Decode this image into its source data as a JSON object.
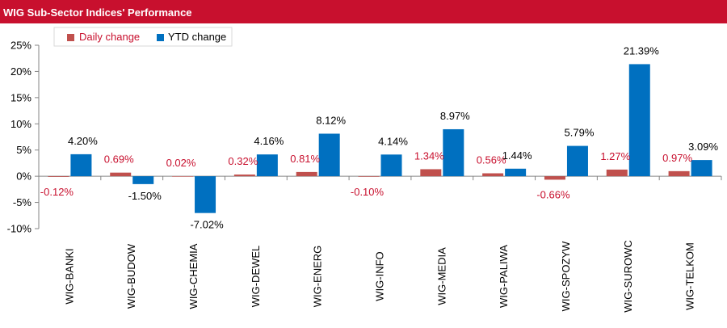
{
  "title": "WIG Sub-Sector Indices' Performance",
  "colors": {
    "header": "#c8102e",
    "daily": "#c0504d",
    "ytd": "#0070c0",
    "daily_label": "#c8102e",
    "ytd_label": "#000000",
    "axis": "#868686",
    "grid": "#868686"
  },
  "chart_data": {
    "type": "bar",
    "title": "WIG Sub-Sector Indices' Performance",
    "xlabel": "",
    "ylabel": "",
    "ylim": [
      -10,
      25
    ],
    "yticks": [
      25,
      20,
      15,
      10,
      5,
      0,
      -5,
      -10
    ],
    "ytick_labels": [
      "25%",
      "20%",
      "15%",
      "10%",
      "5%",
      "0%",
      "-5%",
      "-10%"
    ],
    "grid": false,
    "legend_position": "top-left",
    "categories": [
      "WIG-BANKI",
      "WIG-BUDOW",
      "WIG-CHEMIA",
      "WIG-DEWEL",
      "WIG-ENERG",
      "WIG-INFO",
      "WIG-MEDIA",
      "WIG-PALIWA",
      "WIG-SPOZYW",
      "WIG-SUROWC",
      "WIG-TELKOM"
    ],
    "series": [
      {
        "name": "Daily change",
        "values": [
          -0.12,
          0.69,
          0.02,
          0.32,
          0.81,
          -0.1,
          1.34,
          0.56,
          -0.66,
          1.27,
          0.97
        ],
        "labels": [
          "-0.12%",
          "0.69%",
          "0.02%",
          "0.32%",
          "0.81%",
          "-0.10%",
          "1.34%",
          "0.56%",
          "-0.66%",
          "1.27%",
          "0.97%"
        ]
      },
      {
        "name": "YTD change",
        "values": [
          4.2,
          -1.5,
          -7.02,
          4.16,
          8.12,
          4.14,
          8.97,
          1.44,
          5.79,
          21.39,
          3.09
        ],
        "labels": [
          "4.20%",
          "-1.50%",
          "-7.02%",
          "4.16%",
          "8.12%",
          "4.14%",
          "8.97%",
          "1.44%",
          "5.79%",
          "21.39%",
          "3.09%"
        ]
      }
    ]
  }
}
